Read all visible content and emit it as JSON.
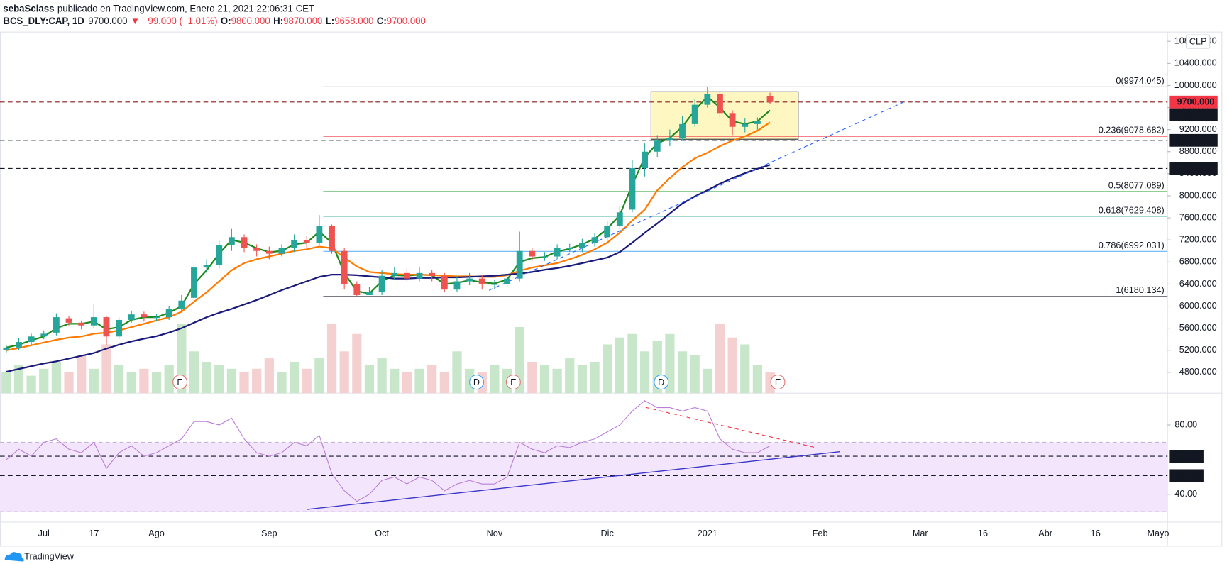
{
  "header": {
    "author": "sebaSclass",
    "published": "publicado en TradingView.com, Enero 21, 2021 22:06:31 CET",
    "symbol": "BCS_DLY:CAP, 1D",
    "last": "9700.000",
    "change": "▼ −99.000 (−1.01%)",
    "ohlc": [
      {
        "key": "O:",
        "value": "9800.000"
      },
      {
        "key": "H:",
        "value": "9870.000"
      },
      {
        "key": "L:",
        "value": "9658.000"
      },
      {
        "key": "C:",
        "value": "9700.000"
      }
    ],
    "currency": "CLP",
    "brand": "TradingView"
  },
  "chart_data": {
    "type": "candlestick",
    "categories": [
      null,
      null,
      null,
      "Jul",
      null,
      null,
      null,
      "17",
      null,
      null,
      null,
      null,
      "Ago",
      null,
      null,
      null,
      null,
      null,
      null,
      null,
      null,
      "Sep",
      null,
      null,
      null,
      null,
      null,
      null,
      null,
      null,
      "Oct",
      null,
      null,
      null,
      null,
      null,
      null,
      null,
      null,
      "Nov",
      null,
      null,
      null,
      null,
      null,
      null,
      null,
      null,
      "Dic",
      null,
      null,
      null,
      null,
      null,
      null,
      null,
      "2021",
      null,
      null,
      null,
      null,
      null,
      null,
      null,
      null,
      "Feb",
      null,
      null,
      null,
      null,
      null,
      null,
      null,
      "Mar",
      null,
      null,
      null,
      null,
      "16",
      null,
      null,
      null,
      null,
      "Abr",
      null,
      null,
      null,
      "16",
      null,
      null,
      null,
      null,
      "Mayo"
    ],
    "open": [
      5200,
      5250,
      5350,
      5450,
      5520,
      5780,
      5700,
      5650,
      5800,
      5450,
      5750,
      5850,
      5800,
      5800,
      5950,
      6150,
      6700,
      6750,
      7100,
      7250,
      7050,
      7000,
      6950,
      7050,
      7200,
      7150,
      7450,
      7000,
      6400,
      6200,
      6250,
      6550,
      6600,
      6500,
      6600,
      6550,
      6300,
      6450,
      6500,
      6400,
      6400,
      6500,
      7000,
      6900,
      6900,
      7050,
      7050,
      7150,
      7250,
      7450,
      7750,
      8500,
      8800,
      9000,
      9050,
      9300,
      9650,
      9850,
      9500,
      9250,
      9300,
      9800,
      null,
      null,
      null,
      null,
      null,
      null,
      null,
      null,
      null,
      null,
      null,
      null,
      null,
      null,
      null,
      null,
      null,
      null,
      null,
      null,
      null,
      null,
      null,
      null,
      null,
      null,
      null,
      null,
      null,
      null,
      null
    ],
    "high": [
      5300,
      5420,
      5500,
      5560,
      5870,
      5820,
      5740,
      6050,
      5820,
      5800,
      5920,
      5900,
      5860,
      6000,
      6200,
      6800,
      6850,
      7180,
      7400,
      7300,
      7120,
      7080,
      7120,
      7300,
      7280,
      7650,
      7480,
      7050,
      6450,
      6350,
      6650,
      6700,
      6680,
      6700,
      6660,
      6600,
      6550,
      6600,
      6560,
      6480,
      6580,
      7350,
      7050,
      6980,
      7120,
      7130,
      7220,
      7330,
      7540,
      7800,
      8650,
      8950,
      9100,
      9200,
      9450,
      9750,
      9974,
      9880,
      9550,
      9400,
      9420,
      9870,
      null,
      null,
      null,
      null,
      null,
      null,
      null,
      null,
      null,
      null,
      null,
      null,
      null,
      null,
      null,
      null,
      null,
      null,
      null,
      null,
      null,
      null,
      null,
      null,
      null,
      null,
      null,
      null,
      null,
      null,
      null
    ],
    "low": [
      5150,
      5200,
      5300,
      5400,
      5470,
      5650,
      5580,
      5600,
      5300,
      5400,
      5700,
      5720,
      5720,
      5750,
      5900,
      6100,
      6600,
      6680,
      7000,
      6980,
      6900,
      6850,
      6900,
      6980,
      7050,
      7100,
      6950,
      6300,
      6180,
      6200,
      6200,
      6480,
      6450,
      6450,
      6450,
      6250,
      6250,
      6380,
      6300,
      6300,
      6350,
      6450,
      6820,
      6820,
      6850,
      6980,
      6980,
      7080,
      7180,
      7400,
      7700,
      8350,
      8700,
      8900,
      9000,
      9250,
      9600,
      9400,
      9100,
      9150,
      9200,
      9658,
      null,
      null,
      null,
      null,
      null,
      null,
      null,
      null,
      null,
      null,
      null,
      null,
      null,
      null,
      null,
      null,
      null,
      null,
      null,
      null,
      null,
      null,
      null,
      null,
      null,
      null,
      null,
      null,
      null,
      null,
      null
    ],
    "close": [
      5250,
      5350,
      5450,
      5500,
      5800,
      5700,
      5650,
      5800,
      5450,
      5750,
      5850,
      5800,
      5800,
      5950,
      6100,
      6700,
      6750,
      7100,
      7250,
      7050,
      7000,
      6950,
      7050,
      7200,
      7150,
      7450,
      7000,
      6400,
      6200,
      6250,
      6550,
      6600,
      6500,
      6600,
      6550,
      6300,
      6450,
      6500,
      6400,
      6400,
      6500,
      7000,
      6900,
      6900,
      7050,
      7050,
      7150,
      7250,
      7450,
      7700,
      8500,
      8800,
      9000,
      9050,
      9300,
      9650,
      9850,
      9500,
      9250,
      9300,
      9350,
      9700,
      null,
      null,
      null,
      null,
      null,
      null,
      null,
      null,
      null,
      null,
      null,
      null,
      null,
      null,
      null,
      null,
      null,
      null,
      null,
      null,
      null,
      null,
      null,
      null,
      null,
      null,
      null,
      null,
      null,
      null,
      null
    ],
    "up_color": "#26a69a",
    "down_color": "#ef5350",
    "ylim": [
      4423,
      10975
    ],
    "yticks": [
      {
        "value": 4800,
        "label": "4800.000"
      },
      {
        "value": 5200,
        "label": "5200.000"
      },
      {
        "value": 5600,
        "label": "5600.000"
      },
      {
        "value": 6000,
        "label": "6000.000"
      },
      {
        "value": 6400,
        "label": "6400.000"
      },
      {
        "value": 6800,
        "label": "6800.000"
      },
      {
        "value": 7200,
        "label": "7200.000"
      },
      {
        "value": 7600,
        "label": "7600.000"
      },
      {
        "value": 8000,
        "label": "8000.000"
      },
      {
        "value": 8400,
        "label": "8400.000"
      },
      {
        "value": 8800,
        "label": "8800.000"
      },
      {
        "value": 9200,
        "label": "9200.000"
      },
      {
        "value": 9600,
        "label": "9600.000"
      },
      {
        "value": 10000,
        "label": "10000.000"
      },
      {
        "value": 10400,
        "label": "10400.000"
      },
      {
        "value": 10800,
        "label": "10800.000"
      }
    ],
    "series": [
      {
        "color": "#1e8a1e",
        "values": [
          5250,
          5300,
          5380,
          5450,
          5600,
          5680,
          5680,
          5720,
          5580,
          5620,
          5750,
          5800,
          5800,
          5880,
          6000,
          6400,
          6650,
          6950,
          7200,
          7150,
          7050,
          6980,
          7000,
          7120,
          7150,
          7350,
          7150,
          6600,
          6270,
          6230,
          6450,
          6560,
          6550,
          6570,
          6560,
          6400,
          6420,
          6470,
          6430,
          6410,
          6480,
          6800,
          6870,
          6890,
          6990,
          7040,
          7120,
          7220,
          7400,
          7650,
          8200,
          8700,
          8950,
          9050,
          9250,
          9550,
          9800,
          9600,
          9350,
          9300,
          9350,
          9550,
          null,
          null,
          null,
          null,
          null,
          null,
          null,
          null,
          null,
          null,
          null,
          null,
          null,
          null,
          null,
          null,
          null,
          null,
          null,
          null,
          null,
          null,
          null,
          null,
          null,
          null,
          null,
          null,
          null,
          null,
          null
        ]
      },
      {
        "color": "#ff7a00",
        "values": [
          5200,
          5240,
          5290,
          5340,
          5390,
          5430,
          5450,
          5500,
          5520,
          5560,
          5620,
          5680,
          5740,
          5800,
          5900,
          6080,
          6250,
          6450,
          6650,
          6780,
          6850,
          6900,
          6950,
          7000,
          7030,
          7080,
          7050,
          6880,
          6720,
          6620,
          6600,
          6580,
          6570,
          6570,
          6560,
          6550,
          6540,
          6540,
          6530,
          6530,
          6560,
          6640,
          6700,
          6740,
          6780,
          6850,
          6930,
          7030,
          7150,
          7330,
          7550,
          7750,
          8100,
          8320,
          8520,
          8680,
          8780,
          8900,
          9000,
          9080,
          9180,
          9330,
          null,
          null,
          null,
          null,
          null,
          null,
          null,
          null,
          null,
          null,
          null,
          null,
          null,
          null,
          null,
          null,
          null,
          null,
          null,
          null,
          null,
          null,
          null,
          null,
          null,
          null,
          null,
          null,
          null,
          null,
          null
        ]
      },
      {
        "color": "#1a1a7a",
        "values": [
          4810,
          4860,
          4910,
          4960,
          5000,
          5050,
          5100,
          5150,
          5230,
          5300,
          5360,
          5410,
          5455,
          5520,
          5600,
          5700,
          5800,
          5880,
          5950,
          6030,
          6110,
          6200,
          6290,
          6370,
          6450,
          6530,
          6570,
          6570,
          6560,
          6540,
          6520,
          6500,
          6500,
          6510,
          6510,
          6520,
          6520,
          6530,
          6540,
          6550,
          6570,
          6590,
          6620,
          6660,
          6690,
          6730,
          6780,
          6830,
          6880,
          6980,
          7150,
          7330,
          7500,
          7680,
          7860,
          7990,
          8100,
          8220,
          8320,
          8410,
          8490,
          8560,
          null,
          null,
          null,
          null,
          null,
          null,
          null,
          null,
          null,
          null,
          null,
          null,
          null,
          null,
          null,
          null,
          null,
          null,
          null,
          null,
          null,
          null,
          null,
          null,
          null,
          null,
          null,
          null,
          null,
          null,
          null
        ]
      }
    ],
    "fib_levels": [
      {
        "label": "0(9974.045)",
        "value": 9974.045,
        "color": "#787b86"
      },
      {
        "label": "0.236(9078.682)",
        "value": 9078.682,
        "color": "#f23645"
      },
      {
        "label": "0.5(8077.089)",
        "value": 8077.089,
        "color": "#4caf50"
      },
      {
        "label": "0.618(7629.408)",
        "value": 7629.408,
        "color": "#089981"
      },
      {
        "label": "0.786(6992.031)",
        "value": 6992.031,
        "color": "#64b5f6"
      },
      {
        "label": "1(6180.134)",
        "value": 6180.134,
        "color": "#787b86"
      }
    ],
    "price_levels": [
      {
        "value": 9700,
        "label": "9700.000",
        "color": "#f23645",
        "dashed_line": true
      },
      {
        "value": 9687.077,
        "label": "9687.077",
        "color": "#131722",
        "dashed_line": false
      },
      {
        "value": 9005.025,
        "label": "9005.025",
        "color": "#131722",
        "dashed_line": true
      },
      {
        "value": 8496.085,
        "label": "8496.085",
        "color": "#131722",
        "dashed_line": true
      }
    ],
    "volume": {
      "values": [
        30,
        40,
        25,
        35,
        45,
        30,
        55,
        35,
        70,
        40,
        30,
        35,
        30,
        40,
        100,
        60,
        45,
        40,
        35,
        30,
        35,
        50,
        30,
        45,
        35,
        50,
        100,
        60,
        85,
        40,
        50,
        35,
        30,
        35,
        40,
        30,
        60,
        35,
        30,
        40,
        35,
        95,
        45,
        40,
        35,
        50,
        40,
        45,
        70,
        80,
        85,
        60,
        75,
        85,
        60,
        55,
        35,
        100,
        80,
        70,
        40,
        30,
        null,
        null,
        null,
        null,
        null,
        null,
        null,
        null,
        null,
        null,
        null,
        null,
        null,
        null,
        null,
        null,
        null,
        null,
        null,
        null,
        null,
        null,
        null,
        null,
        null,
        null,
        null,
        null,
        null,
        null,
        null
      ],
      "up_color": "#c8e6c9",
      "down_color": "#f5d0d0"
    },
    "events": [
      {
        "label": "E",
        "color": "#e57373"
      },
      {
        "label": "D",
        "color": "#42a5f5"
      },
      {
        "label": "E",
        "color": "#e57373"
      },
      {
        "label": "D",
        "color": "#42a5f5"
      },
      {
        "label": "E",
        "color": "#e57373"
      }
    ],
    "rsi": {
      "color": "#b97fd6",
      "band_color": "#f3e5fc",
      "values": [
        60,
        66,
        62,
        70,
        72,
        66,
        64,
        70,
        55,
        64,
        68,
        62,
        64,
        68,
        72,
        82,
        82,
        80,
        84,
        72,
        64,
        62,
        64,
        70,
        68,
        74,
        52,
        42,
        36,
        40,
        48,
        50,
        46,
        50,
        48,
        42,
        46,
        48,
        46,
        46,
        50,
        70,
        66,
        64,
        68,
        67,
        70,
        72,
        76,
        80,
        88,
        94,
        90,
        90,
        88,
        90,
        88,
        72,
        66,
        64,
        64,
        68,
        null,
        null,
        null,
        null,
        null,
        null,
        null,
        null,
        null,
        null,
        null,
        null,
        null,
        null,
        null,
        null,
        null,
        null,
        null,
        null,
        null,
        null,
        null,
        null,
        null,
        null,
        null,
        null,
        null,
        null,
        null
      ],
      "ylim": [
        24,
        97
      ],
      "yticks": [
        {
          "value": 40,
          "label": "40.00"
        },
        {
          "value": 80,
          "label": "80.00"
        }
      ],
      "band": [
        30,
        70
      ],
      "levels": [
        {
          "value": 61.98,
          "label": "61.98"
        },
        {
          "value": 50.81,
          "label": "50.81"
        }
      ]
    }
  }
}
